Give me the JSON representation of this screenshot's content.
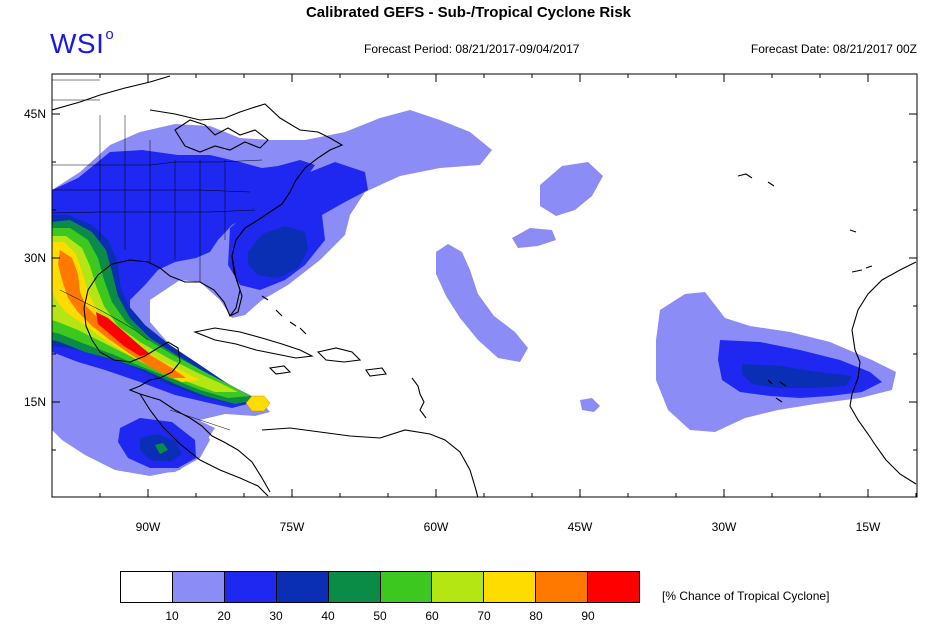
{
  "header": {
    "title": "Calibrated GEFS - Sub-/Tropical Cyclone Risk",
    "logo": "WSI",
    "logo_mark": "o",
    "forecast_period": "Forecast Period: 08/21/2017-09/04/2017",
    "forecast_date": "Forecast Date: 08/21/2017 00Z"
  },
  "map": {
    "lat_labels": [
      "45N",
      "30N",
      "15N"
    ],
    "lon_labels": [
      "90W",
      "75W",
      "60W",
      "45W",
      "30W",
      "15W"
    ]
  },
  "legend": {
    "label": "[% Chance of Tropical Cyclone]",
    "ticks": [
      "10",
      "20",
      "30",
      "40",
      "50",
      "60",
      "70",
      "80",
      "90"
    ],
    "colors": [
      "#ffffff",
      "#8c8cf7",
      "#1e28f0",
      "#0a2fb4",
      "#0a8c46",
      "#3cc81e",
      "#b4e614",
      "#ffdc00",
      "#ff7800",
      "#ff0000"
    ]
  }
}
